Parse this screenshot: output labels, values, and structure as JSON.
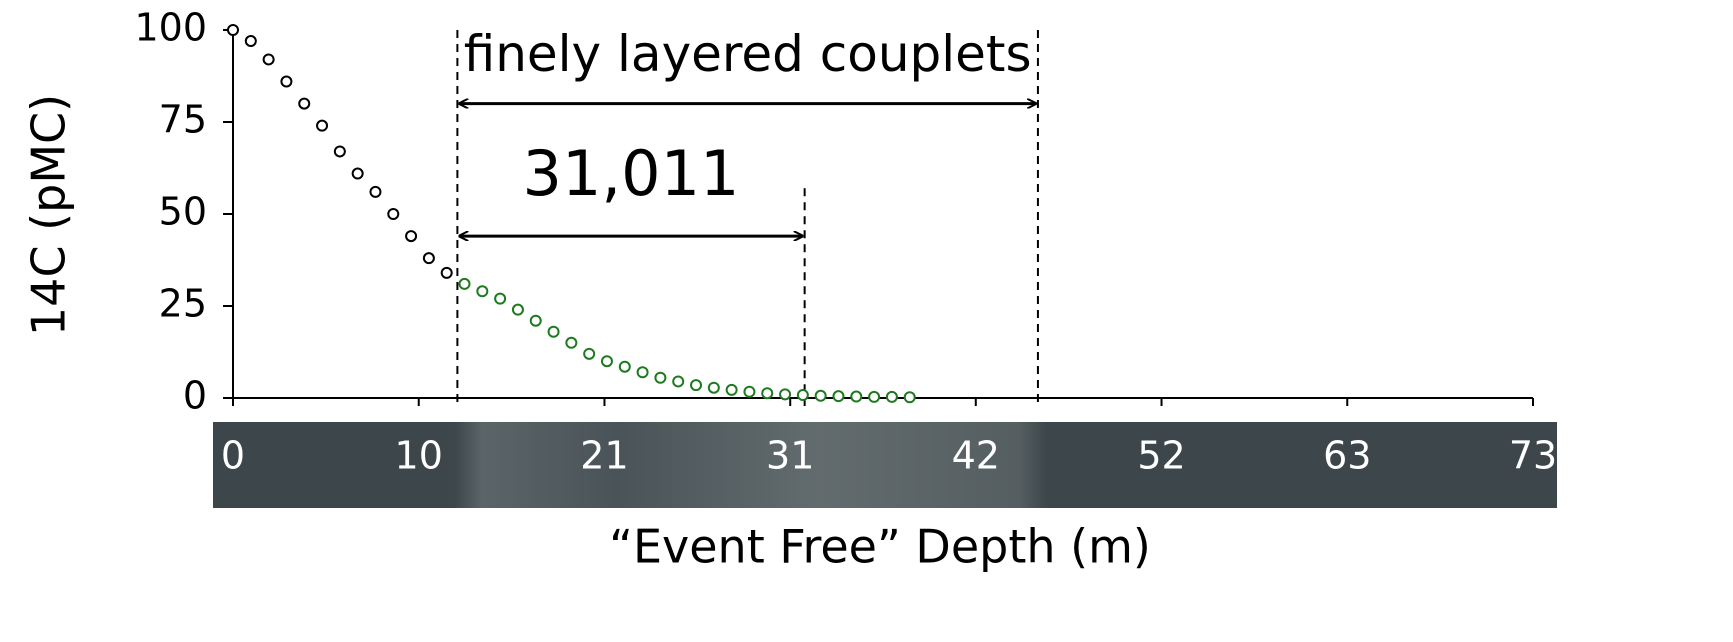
{
  "chart_data": {
    "type": "scatter",
    "x_label": "“Event Free” Depth (m)",
    "y_label": "14C  (pMC)",
    "xlim": [
      0,
      73
    ],
    "xticks": [
      0,
      {
        "value": 10.43,
        "label": "10"
      },
      {
        "value": 20.86,
        "label": "21"
      },
      {
        "value": 31.29,
        "label": "31"
      },
      {
        "value": 41.71,
        "label": "42"
      },
      {
        "value": 52.14,
        "label": "52"
      },
      {
        "value": 62.57,
        "label": "63"
      },
      73
    ],
    "ylim": [
      0,
      100
    ],
    "yticks": [
      0,
      25,
      50,
      75,
      100
    ],
    "series": [
      {
        "color": "#000000",
        "x": [
          0,
          1,
          2,
          3,
          4,
          5,
          6,
          7,
          8,
          9,
          10,
          11,
          12
        ],
        "values": [
          100,
          97,
          92,
          86,
          80,
          74,
          67,
          61,
          56,
          50,
          44,
          38,
          34
        ]
      },
      {
        "color": "#1e7a1e",
        "x": [
          13,
          14,
          15,
          16,
          17,
          18,
          19,
          20,
          21,
          22,
          23,
          24,
          25,
          26,
          27,
          28,
          29,
          30,
          31,
          32,
          33,
          34,
          35,
          36,
          37,
          38
        ],
        "values": [
          31,
          29,
          27,
          24,
          21,
          18,
          15,
          12,
          10,
          8.5,
          7,
          5.5,
          4.5,
          3.5,
          2.8,
          2.2,
          1.7,
          1.3,
          1,
          0.8,
          0.6,
          0.5,
          0.4,
          0.3,
          0.3,
          0.2
        ]
      }
    ],
    "vlines": [
      {
        "x": 12.6,
        "top": 100
      },
      {
        "x": 32.1,
        "top": 57
      },
      {
        "x": 45.2,
        "top": 100
      }
    ],
    "annotations": [
      {
        "text": "finely layered couplets",
        "x": [
          12.6,
          45.2
        ],
        "y": 80
      },
      {
        "text": "31,011",
        "x": [
          12.6,
          32.1
        ],
        "y": 44
      }
    ]
  }
}
